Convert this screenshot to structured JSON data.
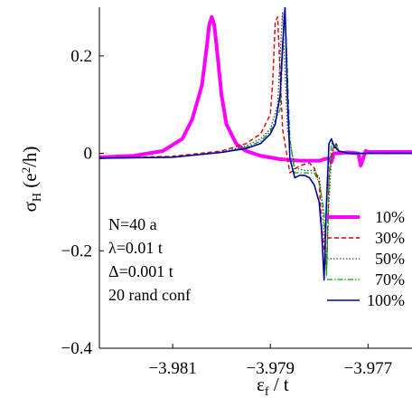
{
  "chart_data": {
    "type": "line",
    "title": "",
    "xlabel": "εf / t",
    "ylabel": "σH (e²/h)",
    "xlim": [
      -3.9825,
      -3.9761
    ],
    "ylim": [
      -0.4,
      0.3
    ],
    "x_ticks": [
      -3.981,
      -3.979,
      -3.977
    ],
    "x_tick_labels": [
      "−3.981",
      "−3.979",
      "−3.977"
    ],
    "y_ticks": [
      -0.4,
      -0.2,
      0,
      0.2
    ],
    "y_tick_labels": [
      "−0.4",
      "−0.2",
      "0",
      "0.2"
    ],
    "grid": false,
    "legend_position": "lower-right",
    "annotations": [
      "N=40 a",
      "λ=0.01 t",
      "Δ=0.001 t",
      "20 rand conf"
    ],
    "series": [
      {
        "name": "10%",
        "color": "#ff00ff",
        "style": "solid-thick",
        "x": [
          -3.9825,
          -3.9818,
          -3.9812,
          -3.9808,
          -3.9806,
          -3.9804,
          -3.9803,
          -3.98025,
          -3.9802,
          -3.98015,
          -3.9801,
          -3.98,
          -3.9799,
          -3.9797,
          -3.9795,
          -3.9792,
          -3.9788,
          -3.9784,
          -3.978,
          -3.9779,
          -3.9778,
          -3.97775,
          -3.9777,
          -3.9774,
          -3.9772,
          -3.97715,
          -3.9771,
          -3.97705,
          -3.977,
          -3.9766,
          -3.9761
        ],
        "y": [
          -0.008,
          -0.005,
          0.005,
          0.03,
          0.07,
          0.14,
          0.22,
          0.265,
          0.28,
          0.265,
          0.22,
          0.12,
          0.06,
          0.02,
          0.005,
          -0.005,
          -0.012,
          -0.015,
          -0.015,
          -0.012,
          -0.01,
          -0.018,
          0.0,
          0.002,
          0.0,
          -0.025,
          -0.01,
          0.005,
          0.003,
          0.003,
          0.003
        ]
      },
      {
        "name": "30%",
        "color": "#dd0000",
        "style": "dashed",
        "x": [
          -3.9825,
          -3.981,
          -3.98,
          -3.9795,
          -3.9792,
          -3.979,
          -3.97895,
          -3.9789,
          -3.97885,
          -3.97875,
          -3.9786,
          -3.9784,
          -3.9782,
          -3.9781,
          -3.978,
          -3.97795,
          -3.97785,
          -3.9778,
          -3.97775,
          -3.9777,
          -3.97765,
          -3.9776,
          -3.9774,
          -3.977,
          -3.9761
        ],
        "y": [
          -0.01,
          -0.006,
          0.005,
          0.02,
          0.04,
          0.08,
          0.15,
          0.27,
          0.28,
          0.05,
          -0.04,
          -0.025,
          -0.02,
          -0.03,
          -0.06,
          -0.15,
          -0.24,
          -0.05,
          0.0,
          0.015,
          0.02,
          0.005,
          0.0,
          0.0,
          0.0
        ]
      },
      {
        "name": "50%",
        "color": "#444444",
        "style": "dotted",
        "x": [
          -3.9825,
          -3.981,
          -3.98,
          -3.9795,
          -3.9792,
          -3.979,
          -3.97885,
          -3.9788,
          -3.97875,
          -3.97865,
          -3.9785,
          -3.9783,
          -3.9781,
          -3.978,
          -3.97795,
          -3.97785,
          -3.9778,
          -3.97775,
          -3.9777,
          -3.97765,
          -3.9776,
          -3.9774,
          -3.977,
          -3.9761
        ],
        "y": [
          -0.01,
          -0.007,
          0.003,
          0.015,
          0.03,
          0.05,
          0.1,
          0.2,
          0.29,
          0.05,
          -0.03,
          -0.035,
          -0.035,
          -0.05,
          -0.09,
          -0.24,
          -0.1,
          -0.01,
          0.01,
          0.02,
          0.005,
          0.0,
          0.0,
          0.0
        ]
      },
      {
        "name": "70%",
        "color": "#00aa00",
        "style": "dash-dot",
        "x": [
          -3.9825,
          -3.981,
          -3.98,
          -3.9795,
          -3.9792,
          -3.979,
          -3.9788,
          -3.97875,
          -3.9787,
          -3.9786,
          -3.9785,
          -3.9783,
          -3.9781,
          -3.978,
          -3.9779,
          -3.97785,
          -3.9778,
          -3.97775,
          -3.9777,
          -3.9776,
          -3.9774,
          -3.977,
          -3.9761
        ],
        "y": [
          -0.01,
          -0.008,
          0.002,
          0.012,
          0.025,
          0.045,
          0.09,
          0.2,
          0.3,
          0.03,
          -0.04,
          -0.04,
          -0.04,
          -0.06,
          -0.12,
          -0.25,
          -0.05,
          0.02,
          0.02,
          0.005,
          0.0,
          0.0,
          0.0
        ]
      },
      {
        "name": "100%",
        "color": "#0000aa",
        "style": "solid",
        "x": [
          -3.9825,
          -3.981,
          -3.98,
          -3.9795,
          -3.9792,
          -3.979,
          -3.9789,
          -3.9788,
          -3.97875,
          -3.9787,
          -3.97865,
          -3.9786,
          -3.9785,
          -3.9784,
          -3.9783,
          -3.9782,
          -3.9781,
          -3.978,
          -3.97795,
          -3.9779,
          -3.97785,
          -3.9778,
          -3.97775,
          -3.9777,
          -3.9776,
          -3.9774,
          -3.977,
          -3.9761
        ],
        "y": [
          -0.01,
          -0.008,
          0.002,
          0.01,
          0.02,
          0.04,
          0.06,
          0.12,
          0.22,
          0.3,
          0.12,
          -0.01,
          -0.05,
          -0.045,
          -0.045,
          -0.05,
          -0.065,
          -0.1,
          -0.16,
          -0.26,
          -0.1,
          0.02,
          0.03,
          0.015,
          0.005,
          0.0,
          0.0,
          0.0
        ]
      }
    ]
  }
}
